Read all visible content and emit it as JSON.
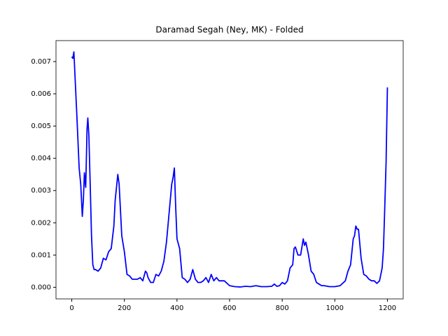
{
  "chart_data": {
    "type": "line",
    "title": "Daramad Segah (Ney, MK) - Folded",
    "color": "#0000ff",
    "x": [
      0,
      4,
      8,
      12,
      20,
      28,
      34,
      40,
      44,
      48,
      53,
      58,
      61,
      65,
      70,
      75,
      80,
      85,
      90,
      100,
      110,
      120,
      130,
      140,
      150,
      160,
      165,
      170,
      175,
      180,
      185,
      190,
      200,
      210,
      220,
      230,
      240,
      250,
      260,
      270,
      280,
      285,
      290,
      300,
      310,
      320,
      330,
      340,
      350,
      360,
      370,
      380,
      385,
      390,
      395,
      400,
      410,
      420,
      430,
      440,
      450,
      460,
      470,
      480,
      490,
      500,
      510,
      520,
      530,
      540,
      550,
      560,
      570,
      580,
      600,
      620,
      640,
      660,
      680,
      700,
      720,
      740,
      760,
      770,
      780,
      790,
      800,
      810,
      820,
      830,
      840,
      845,
      850,
      860,
      870,
      880,
      885,
      890,
      900,
      910,
      920,
      930,
      940,
      950,
      960,
      980,
      1000,
      1020,
      1040,
      1050,
      1060,
      1070,
      1075,
      1080,
      1085,
      1090,
      1100,
      1110,
      1120,
      1130,
      1140,
      1150,
      1160,
      1170,
      1180,
      1185,
      1190,
      1195,
      1200
    ],
    "values": [
      0.00715,
      0.0071,
      0.0073,
      0.0066,
      0.0052,
      0.0037,
      0.0032,
      0.0022,
      0.0027,
      0.00355,
      0.0031,
      0.0049,
      0.00525,
      0.0047,
      0.0032,
      0.0016,
      0.0007,
      0.00055,
      0.00055,
      0.0005,
      0.0006,
      0.0009,
      0.00085,
      0.0011,
      0.0012,
      0.0019,
      0.0027,
      0.0031,
      0.0035,
      0.0032,
      0.0024,
      0.0016,
      0.0011,
      0.0004,
      0.00035,
      0.00025,
      0.00025,
      0.00025,
      0.0003,
      0.0002,
      0.0005,
      0.00045,
      0.0003,
      0.00015,
      0.00015,
      0.0004,
      0.00035,
      0.0005,
      0.0008,
      0.0014,
      0.0023,
      0.0032,
      0.0034,
      0.0037,
      0.0025,
      0.0015,
      0.0012,
      0.0003,
      0.00025,
      0.00015,
      0.00025,
      0.00055,
      0.00025,
      0.00015,
      0.00015,
      0.0002,
      0.0003,
      0.00015,
      0.0004,
      0.0002,
      0.0003,
      0.0002,
      0.0002,
      0.0002,
      5e-05,
      2e-05,
      1e-05,
      3e-05,
      2e-05,
      5e-05,
      2e-05,
      2e-05,
      3e-05,
      0.0001,
      3e-05,
      5e-05,
      0.00015,
      0.0001,
      0.0002,
      0.0006,
      0.0007,
      0.0012,
      0.00125,
      0.001,
      0.001,
      0.0015,
      0.0013,
      0.0014,
      0.001,
      0.0005,
      0.0004,
      0.00015,
      0.0001,
      5e-05,
      5e-05,
      2e-05,
      2e-05,
      5e-05,
      0.0002,
      0.0005,
      0.0007,
      0.0015,
      0.0016,
      0.0019,
      0.0018,
      0.0018,
      0.0009,
      0.0004,
      0.00035,
      0.00025,
      0.0002,
      0.0002,
      0.00012,
      0.0002,
      0.0006,
      0.0012,
      0.0025,
      0.0039,
      0.0062
    ],
    "xlim": [
      -60,
      1260
    ],
    "ylim": [
      -0.00036,
      0.00765
    ],
    "xticks": [
      0,
      200,
      400,
      600,
      800,
      1000,
      1200
    ],
    "yticks": [
      {
        "value": 0,
        "label": "0.000"
      },
      {
        "value": 0.001,
        "label": "0.001"
      },
      {
        "value": 0.002,
        "label": "0.002"
      },
      {
        "value": 0.003,
        "label": "0.003"
      },
      {
        "value": 0.004,
        "label": "0.004"
      },
      {
        "value": 0.005,
        "label": "0.005"
      },
      {
        "value": 0.006,
        "label": "0.006"
      },
      {
        "value": 0.007,
        "label": "0.007"
      }
    ]
  }
}
